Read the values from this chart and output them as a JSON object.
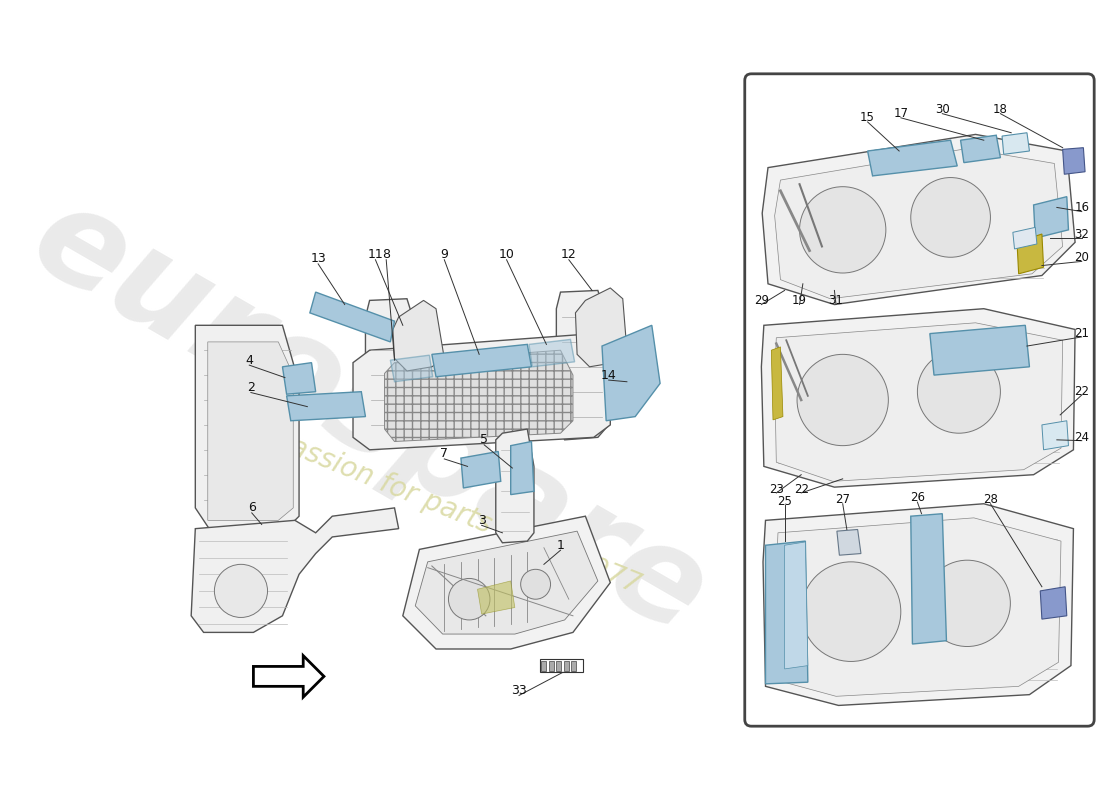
{
  "bg_color": "#ffffff",
  "watermark_text1": "eurospare",
  "watermark_text2": "a passion for parts since 1977",
  "watermark_color1": "#cccccc",
  "watermark_color2": "#d8d8a0",
  "blue_fill": "#a8c8dc",
  "blue_edge": "#5590aa",
  "yellow_fill": "#c8b840",
  "line_color": "#555555",
  "label_color": "#111111",
  "label_fs": 9,
  "label_fs_small": 8.5
}
